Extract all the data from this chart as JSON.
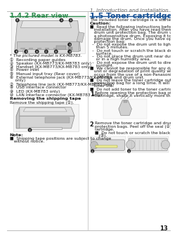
{
  "page_number": "13",
  "header_text": "1. Introduction and Installation",
  "header_color": "#666666",
  "bg_color": "#ffffff",
  "left": {
    "title": "1.4.2 Rear view",
    "title_color": "#2e8b4e",
    "model_note": "* The pictured model is KX-MB783.",
    "items": [
      "①  Recording paper guides",
      "②  Speaker (KX-MB773/KX-MB783 only)",
      "③  Handset (KX-MB773/KX-MB783 only)",
      "④  Power inlet",
      "⑤  Manual input tray (Rear cover)",
      "⑥  External telephone jack (KX-MB773/KX-MB783",
      "    only)",
      "⑦  Telephone line jack (KX-MB773/KX-MB783 only)",
      "⑧  USB interface connector",
      "⑨  LED (KX-MB783 only)",
      "⑩  LAN interface connector (KX-MB783 only)"
    ],
    "shipping_title": "Removing the shipping tape",
    "shipping_text": "Remove the shipping tape (①).",
    "note_title": "Note:",
    "note_bullet": "■  Shipping tape positions are subject to change",
    "note_bullet2": "   without notice."
  },
  "right": {
    "title_line1": "1.5 Toner cartridge and drum unit",
    "title_color": "#1a5496",
    "subtitle": "The included toner cartridge is a starter toner cartridge.",
    "caution_title": "Caution:",
    "bullet1_lines": [
      "■  Read the following instructions before you begin",
      "   installation. After you have read them, open the",
      "   drum unit protection bag. The drum unit contains",
      "   a photosensitive drum. Exposing it to light may",
      "   damage the drum. Once you have opened the",
      "   protection bag:"
    ],
    "dash_lines": [
      "–  Do not expose the drum unit to light for more",
      "   than 5 minutes.",
      "–  Do not touch or scratch the black drum",
      "   surface.",
      "–  Do not place the drum unit near dust or dirt,",
      "   or in a high humidity area.",
      "–  Do not expose the drum unit to direct",
      "   sunlight."
    ],
    "bullet2_lines": [
      "■  We cannot be responsible for any damage to the",
      "   unit or degradation of print quality which may",
      "   occur from the use of a non-Panasonic toner",
      "   cartridge and drum unit."
    ],
    "bullet3_lines": [
      "■  Do not leave the toner cartridge out of the",
      "   protection bag for a long time. It will decrease the",
      "   toner life."
    ],
    "bullet4": "■  Do not add toner to the toner cartridge.",
    "step1_text_lines": [
      "Before opening the protection bag of the new toner",
      "cartridge, shake it vertically more than 5 times."
    ],
    "step2_text_lines": [
      "Remove the toner cartridge and drum unit from the",
      "protection bags. Peel off the seal (②) from the toner",
      "cartridge."
    ],
    "step2_sub": "■  Do not touch or scratch the black drum surface",
    "step2_sub2": "   (③)."
  },
  "div_color": "#bbbbbb",
  "green_color": "#2e8b4e",
  "blue_color": "#1a5496",
  "text_color": "#1a1a1a",
  "fs_tiny": 4.2,
  "fs_small": 4.6,
  "fs_body": 5.0,
  "fs_title_l": 6.8,
  "fs_title_r": 7.8,
  "fs_header": 5.2,
  "fs_step": 6.0
}
